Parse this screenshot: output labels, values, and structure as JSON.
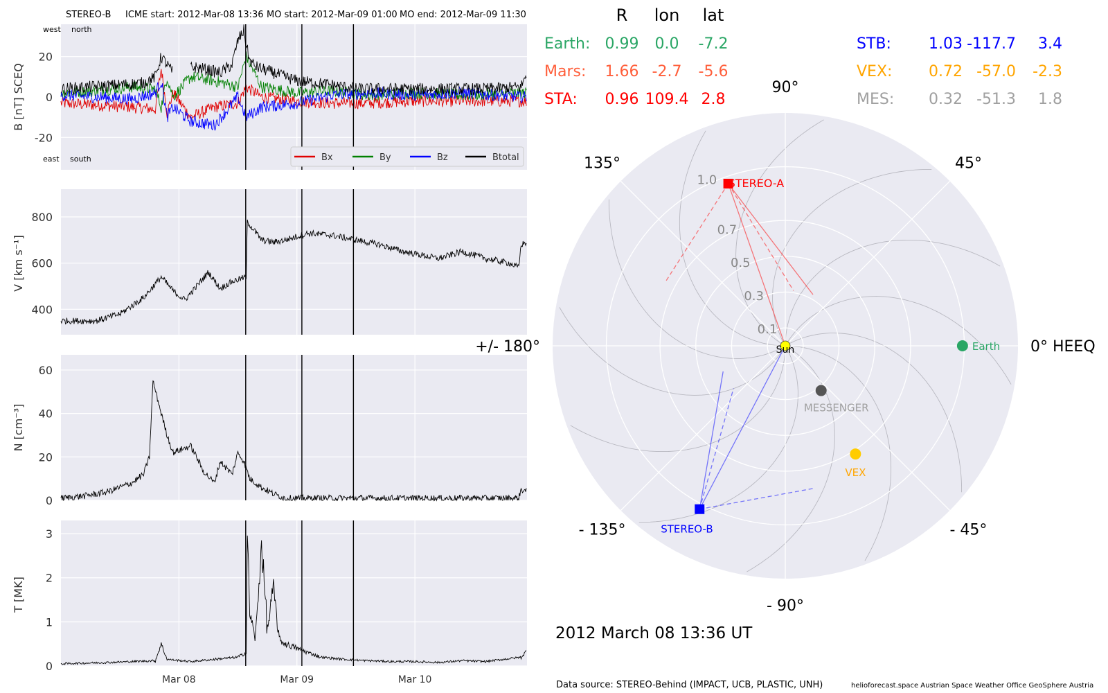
{
  "header": {
    "spacecraft": "STEREO-B",
    "icme_start": "ICME start: 2012-Mar-08 13:36",
    "mo_start": "MO start: 2012-Mar-09 01:00",
    "mo_end": "MO end: 2012-Mar-09 11:30"
  },
  "timestamp": "2012 March 08  13:36 UT",
  "footer": {
    "source": "Data source: STEREO-Behind (IMPACT, UCB, PLASTIC, UNH)",
    "credits": "helioforecast.space   Austrian Space Weather Office   GeoSphere Austria"
  },
  "position_table": {
    "headers": [
      "R",
      "lon",
      "lat"
    ],
    "rows": [
      {
        "name": "Earth:",
        "R": "0.99",
        "lon": "0.0",
        "lat": "-7.2",
        "color": "#2aa665"
      },
      {
        "name": "Mars:",
        "R": "1.66",
        "lon": "-2.7",
        "lat": "-5.6",
        "color": "#ff5e3a"
      },
      {
        "name": "STA:",
        "R": "0.96",
        "lon": "109.4",
        "lat": "2.8",
        "color": "#ff0000"
      },
      {
        "name": "STB:",
        "R": "1.03",
        "lon": "-117.7",
        "lat": "3.4",
        "color": "#0000ff"
      },
      {
        "name": "VEX:",
        "R": "0.72",
        "lon": "-57.0",
        "lat": "-2.3",
        "color": "#ffa500"
      },
      {
        "name": "MES:",
        "R": "0.32",
        "lon": "-51.3",
        "lat": "1.8",
        "color": "#a0a0a0"
      }
    ]
  },
  "chart_data": [
    {
      "type": "line",
      "panel": "magnetic-field",
      "ylabel": "B [nT] SCEQ",
      "yticks": [
        -20,
        0,
        20
      ],
      "ylim": [
        -36,
        36
      ],
      "xlim_days": [
        7.0,
        10.95
      ],
      "annotations": [
        "west",
        "north",
        "east",
        "south"
      ],
      "legend": [
        "Bx",
        "By",
        "Bz",
        "Btotal"
      ],
      "series_colors": {
        "Bx": "#e00000",
        "By": "#008000",
        "Bz": "#0000ff",
        "Btotal": "#000000"
      },
      "series": [
        {
          "name": "Btotal",
          "x": [
            7.0,
            7.5,
            7.7,
            7.8,
            7.85,
            7.95,
            8.05,
            8.1,
            8.2,
            8.35,
            8.45,
            8.5,
            8.55,
            8.57,
            8.6,
            8.65,
            8.8,
            9.0,
            9.3,
            9.5,
            9.8,
            10.2,
            10.6,
            10.9,
            10.95
          ],
          "y": [
            4,
            6,
            7,
            10,
            20,
            12,
            null,
            15,
            14,
            12,
            16,
            28,
            33,
            26,
            18,
            15,
            12,
            8,
            6,
            4,
            4,
            4,
            4,
            5,
            12
          ]
        },
        {
          "name": "Bx",
          "x": [
            7.0,
            7.3,
            7.6,
            7.8,
            7.85,
            7.9,
            7.95,
            8.1,
            8.3,
            8.5,
            8.57,
            8.7,
            9.0,
            9.3,
            9.6,
            10.0,
            10.4,
            10.95
          ],
          "y": [
            -3,
            -4,
            -5,
            -6,
            14,
            -8,
            2,
            -10,
            -5,
            -3,
            5,
            0,
            -2,
            -3,
            -3,
            -2,
            -2,
            -2
          ]
        },
        {
          "name": "By",
          "x": [
            7.0,
            7.3,
            7.6,
            7.8,
            7.85,
            7.9,
            7.95,
            8.1,
            8.3,
            8.5,
            8.57,
            8.7,
            9.0,
            9.3,
            9.6,
            10.0,
            10.4,
            10.95
          ],
          "y": [
            2,
            3,
            5,
            4,
            -5,
            10,
            0,
            10,
            8,
            5,
            20,
            5,
            2,
            3,
            1,
            2,
            1,
            2
          ]
        },
        {
          "name": "Bz",
          "x": [
            7.0,
            7.3,
            7.6,
            7.8,
            7.85,
            7.9,
            7.95,
            8.1,
            8.3,
            8.5,
            8.57,
            8.7,
            9.0,
            9.3,
            9.6,
            10.0,
            10.4,
            10.95
          ],
          "y": [
            1,
            0,
            -1,
            2,
            8,
            -10,
            -5,
            -12,
            -14,
            0,
            -10,
            -5,
            -3,
            1,
            2,
            1,
            2,
            0
          ]
        }
      ]
    },
    {
      "type": "line",
      "panel": "speed",
      "ylabel": "V [km s⁻¹]",
      "yticks": [
        400,
        600,
        800
      ],
      "ylim": [
        290,
        920
      ],
      "series": [
        {
          "name": "V",
          "x": [
            7.0,
            7.3,
            7.5,
            7.7,
            7.85,
            7.95,
            8.05,
            8.15,
            8.25,
            8.35,
            8.45,
            8.57,
            8.58,
            8.7,
            8.8,
            8.9,
            9.1,
            9.3,
            9.5,
            9.7,
            9.9,
            10.0,
            10.2,
            10.4,
            10.6,
            10.8,
            10.88,
            10.9,
            10.95
          ],
          "y": [
            350,
            350,
            380,
            450,
            540,
            480,
            440,
            500,
            560,
            490,
            520,
            540,
            780,
            700,
            690,
            700,
            730,
            720,
            700,
            680,
            650,
            640,
            620,
            650,
            620,
            600,
            580,
            680,
            690
          ]
        }
      ]
    },
    {
      "type": "line",
      "panel": "density",
      "ylabel": "N [cm⁻³]",
      "yticks": [
        0,
        20,
        40,
        60
      ],
      "ylim": [
        0,
        67
      ],
      "series": [
        {
          "name": "N",
          "x": [
            7.0,
            7.2,
            7.4,
            7.5,
            7.6,
            7.7,
            7.75,
            7.78,
            7.85,
            7.9,
            7.95,
            8.0,
            8.1,
            8.15,
            8.2,
            8.3,
            8.35,
            8.45,
            8.5,
            8.55,
            8.6,
            8.7,
            8.8,
            8.9,
            9.0,
            9.2,
            9.4,
            9.6,
            9.8,
            10.0,
            10.3,
            10.6,
            10.88,
            10.9,
            10.95
          ],
          "y": [
            1,
            2,
            4,
            6,
            8,
            12,
            20,
            55,
            40,
            30,
            22,
            23,
            25,
            20,
            14,
            8,
            18,
            12,
            22,
            18,
            10,
            6,
            3,
            1,
            1,
            1,
            1,
            1,
            1,
            1,
            1,
            1,
            1,
            5,
            4
          ]
        }
      ]
    },
    {
      "type": "line",
      "panel": "temperature",
      "xlabel": "",
      "ylabel": "T [MK]",
      "yticks": [
        0,
        1,
        2,
        3
      ],
      "ylim": [
        0,
        3.3
      ],
      "xticks": [
        "Mar 08",
        "Mar 09",
        "Mar 10"
      ],
      "xtick_days": [
        8,
        9,
        10
      ],
      "series": [
        {
          "name": "T",
          "x": [
            7.0,
            7.4,
            7.6,
            7.8,
            7.85,
            7.9,
            8.1,
            8.3,
            8.5,
            8.57,
            8.58,
            8.6,
            8.65,
            8.7,
            8.75,
            8.8,
            8.85,
            8.9,
            9.0,
            9.1,
            9.2,
            9.4,
            9.6,
            9.8,
            10.0,
            10.2,
            10.4,
            10.6,
            10.9,
            10.95
          ],
          "y": [
            0.05,
            0.08,
            0.1,
            0.12,
            0.5,
            0.15,
            0.1,
            0.15,
            0.2,
            0.3,
            3.0,
            1.2,
            0.6,
            2.8,
            0.8,
            1.8,
            0.6,
            0.5,
            0.4,
            0.3,
            0.2,
            0.15,
            0.12,
            0.1,
            0.1,
            0.08,
            0.12,
            0.1,
            0.2,
            0.35
          ]
        }
      ]
    },
    {
      "type": "scatter",
      "panel": "orbit-plot",
      "coordinate_system": "polar",
      "angle_labels": [
        "90°",
        "45°",
        "0° HEEQ",
        "- 45°",
        "- 90°",
        "- 135°",
        "+/- 180°",
        "135°"
      ],
      "radial_labels": [
        "0.1",
        "0.3",
        "0.5",
        "0.7",
        "1.0"
      ],
      "bodies": [
        {
          "name": "Sun",
          "r_au": 0.0,
          "lon_deg": 0.0,
          "color": "#ffff00",
          "marker": "circle"
        },
        {
          "name": "Earth",
          "r_au": 0.99,
          "lon_deg": 0.0,
          "color": "#2aa665",
          "marker": "circle"
        },
        {
          "name": "STEREO-A",
          "r_au": 0.96,
          "lon_deg": 109.4,
          "color": "#ff0000",
          "marker": "square"
        },
        {
          "name": "STEREO-B",
          "r_au": 1.03,
          "lon_deg": -117.7,
          "color": "#0000ff",
          "marker": "square"
        },
        {
          "name": "VEX",
          "r_au": 0.72,
          "lon_deg": -57.0,
          "color": "#ffcc00",
          "marker": "circle"
        },
        {
          "name": "MESSENGER",
          "r_au": 0.32,
          "lon_deg": -51.3,
          "color": "#555555",
          "marker": "circle"
        }
      ]
    }
  ]
}
